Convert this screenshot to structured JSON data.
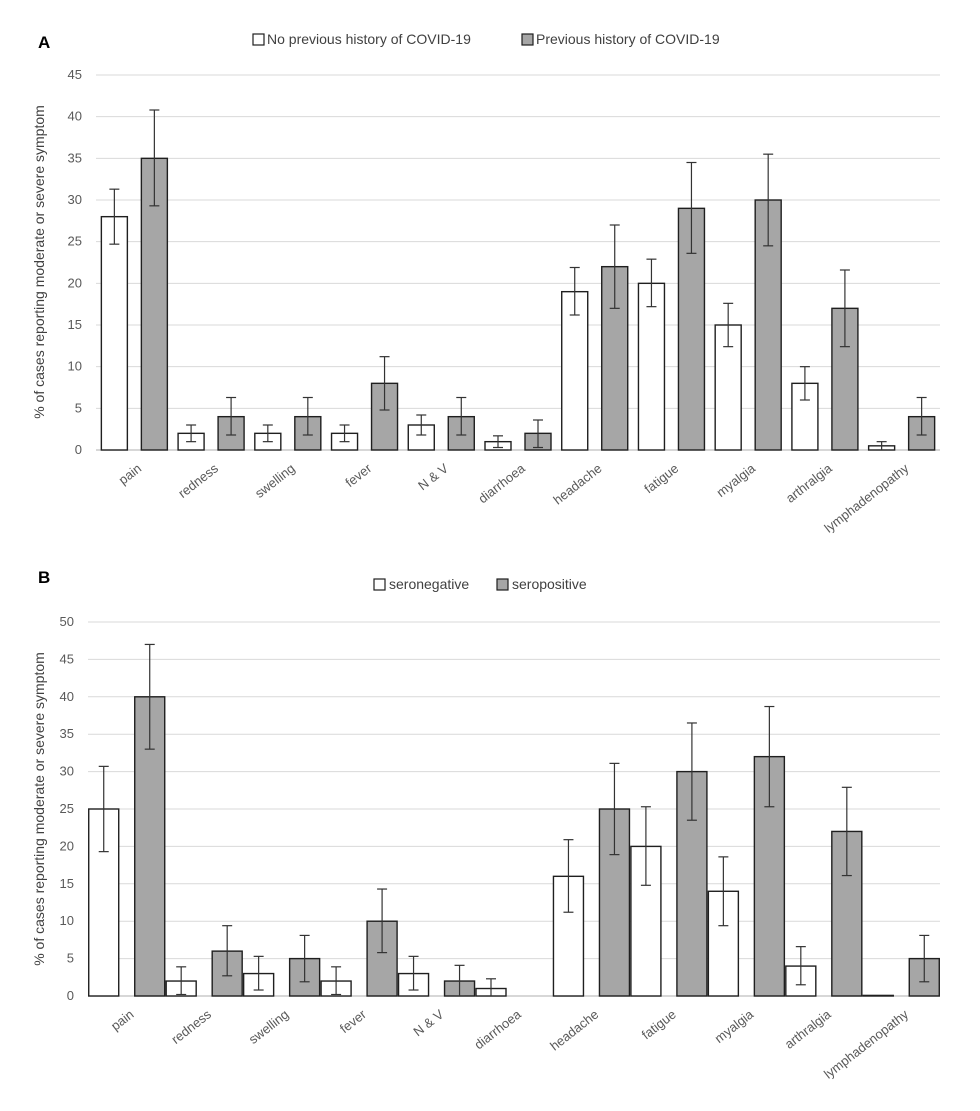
{
  "colors": {
    "series_a": "#ffffff",
    "series_b": "#a6a6a6",
    "bar_outline": "#1f1f1f",
    "error_bar": "#333333",
    "gridline": "#d9d9d9",
    "axis_text": "#595959"
  },
  "chart_data": [
    {
      "type": "bar",
      "panel_label": "A",
      "ylabel": "% of cases reporting moderate or severe symptom",
      "xlabel": "",
      "ylim": [
        0,
        45
      ],
      "ytick_step": 5,
      "grid": true,
      "legend_position": "top-center",
      "categories": [
        "pain",
        "redness",
        "swelling",
        "fever",
        "N & V",
        "diarrhoea",
        "headache",
        "fatigue",
        "myalgia",
        "arthralgia",
        "lymphadenopathy"
      ],
      "series": [
        {
          "name": "No previous history of COVID-19",
          "color": "#ffffff",
          "values": [
            28,
            2,
            2,
            2,
            3,
            1,
            19,
            20,
            15,
            8,
            0.5
          ],
          "error_low": [
            24.7,
            1,
            1,
            1,
            1.8,
            0.3,
            16.2,
            17.2,
            12.4,
            6,
            0
          ],
          "error_high": [
            31.3,
            3,
            3,
            3,
            4.2,
            1.7,
            21.9,
            22.9,
            17.6,
            10,
            1
          ]
        },
        {
          "name": "Previous history of COVID-19",
          "color": "#a6a6a6",
          "values": [
            35,
            4,
            4,
            8,
            4,
            2,
            22,
            29,
            30,
            17,
            4
          ],
          "error_low": [
            29.3,
            1.8,
            1.8,
            4.8,
            1.8,
            0.3,
            17,
            23.6,
            24.5,
            12.4,
            1.8
          ],
          "error_high": [
            40.8,
            6.3,
            6.3,
            11.2,
            6.3,
            3.6,
            27,
            34.5,
            35.5,
            21.6,
            6.3
          ]
        }
      ]
    },
    {
      "type": "bar",
      "panel_label": "B",
      "ylabel": "% of cases reporting moderate or severe symptom",
      "xlabel": "",
      "ylim": [
        0,
        50
      ],
      "ytick_step": 5,
      "grid": true,
      "legend_position": "top-center",
      "categories": [
        "pain",
        "redness",
        "swelling",
        "fever",
        "N & V",
        "diarrhoea",
        "headache",
        "fatigue",
        "myalgia",
        "arthralgia",
        "lymphadenopathy"
      ],
      "series": [
        {
          "name": "seronegative",
          "color": "#ffffff",
          "values": [
            25,
            2,
            3,
            2,
            3,
            1,
            16,
            20,
            14,
            4,
            0
          ],
          "error_low": [
            19.3,
            0.2,
            0.8,
            0.2,
            0.8,
            0,
            11.2,
            14.8,
            9.4,
            1.5,
            null
          ],
          "error_high": [
            30.7,
            3.9,
            5.3,
            3.9,
            5.3,
            2.3,
            20.9,
            25.3,
            18.6,
            6.6,
            null
          ]
        },
        {
          "name": "seropositive",
          "color": "#a6a6a6",
          "values": [
            40,
            6,
            5,
            10,
            2,
            null,
            25,
            30,
            32,
            22,
            5
          ],
          "error_low": [
            33,
            2.7,
            1.9,
            5.8,
            0,
            null,
            18.9,
            23.5,
            25.3,
            16.1,
            1.9
          ],
          "error_high": [
            47,
            9.4,
            8.1,
            14.3,
            4.1,
            null,
            31.1,
            36.5,
            38.7,
            27.9,
            8.1
          ]
        }
      ]
    }
  ]
}
